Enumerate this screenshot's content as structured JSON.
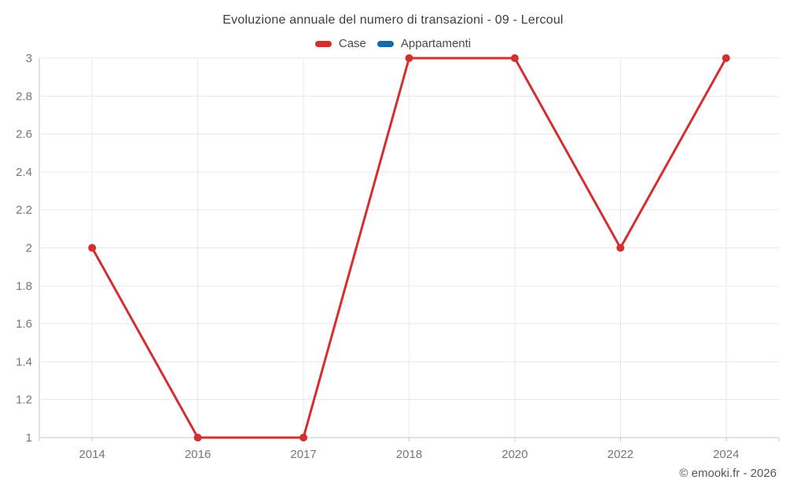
{
  "chart_data": {
    "type": "line",
    "title": "Evoluzione annuale del numero di transazioni - 09 - Lercoul",
    "categories": [
      "2014",
      "2016",
      "2017",
      "2018",
      "2020",
      "2022",
      "2024"
    ],
    "series": [
      {
        "name": "Case",
        "color": "#d32f2f",
        "values": [
          2,
          1,
          1,
          3,
          3,
          2,
          3
        ]
      },
      {
        "name": "Appartamenti",
        "color": "#1769aa",
        "values": []
      }
    ],
    "xlabel": "",
    "ylabel": "",
    "ylim": [
      1,
      3
    ],
    "ytick_step": 0.2,
    "ytick_labels": [
      "1",
      "1.2",
      "1.4",
      "1.6",
      "1.8",
      "2",
      "2.2",
      "2.4",
      "2.6",
      "2.8",
      "3"
    ],
    "grid": "on",
    "legend_position": "top"
  },
  "colors": {
    "grid": "#eaeaea",
    "axis": "#c9c9c9",
    "tick_label": "#767676",
    "background": "#ffffff"
  },
  "footer": {
    "copyright": "© emooki.fr - 2026"
  }
}
